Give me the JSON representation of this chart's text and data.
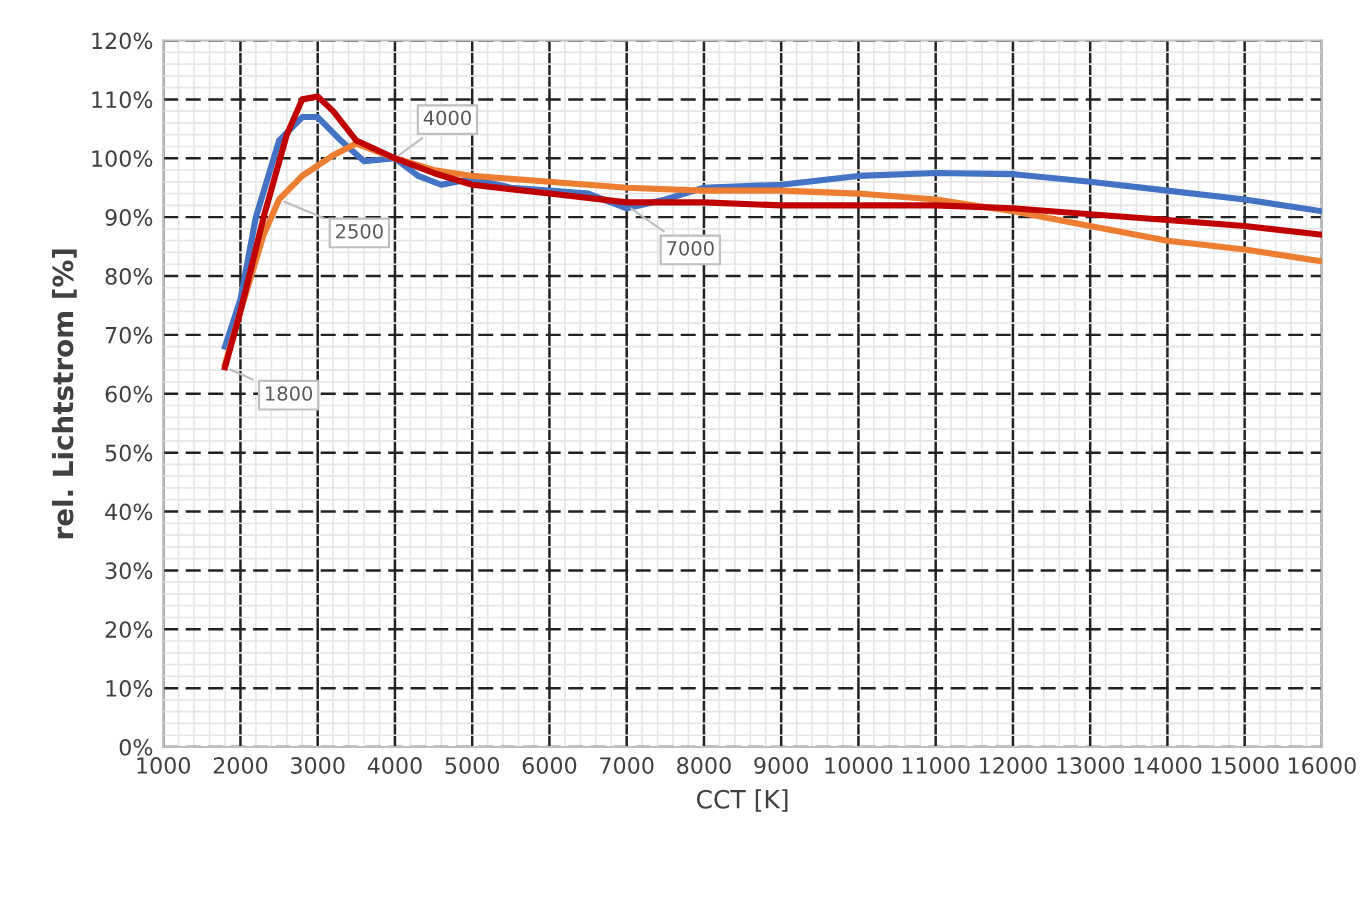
{
  "chart_data": {
    "type": "line",
    "xlabel": "CCT [K]",
    "ylabel": "rel. Lichtstrom [%]",
    "xlim": [
      1000,
      16000
    ],
    "ylim": [
      0,
      120
    ],
    "xticks": [
      1000,
      2000,
      3000,
      4000,
      5000,
      6000,
      7000,
      8000,
      9000,
      10000,
      11000,
      12000,
      13000,
      14000,
      15000,
      16000
    ],
    "yticks": [
      {
        "value": 0,
        "label": "0%"
      },
      {
        "value": 10,
        "label": "10%"
      },
      {
        "value": 20,
        "label": "20%"
      },
      {
        "value": 30,
        "label": "30%"
      },
      {
        "value": 40,
        "label": "40%"
      },
      {
        "value": 50,
        "label": "50%"
      },
      {
        "value": 60,
        "label": "60%"
      },
      {
        "value": 70,
        "label": "70%"
      },
      {
        "value": 80,
        "label": "80%"
      },
      {
        "value": 90,
        "label": "90%"
      },
      {
        "value": 100,
        "label": "100%"
      },
      {
        "value": 110,
        "label": "110%"
      },
      {
        "value": 120,
        "label": "120%"
      }
    ],
    "grid": true,
    "marker": "none",
    "line_style": "solid",
    "annotations": [
      {
        "text": "1800",
        "x": 1800,
        "y": 64.5
      },
      {
        "text": "2500",
        "x": 2500,
        "y": 93
      },
      {
        "text": "4000",
        "x": 4000,
        "y": 100
      },
      {
        "text": "7000",
        "x": 7000,
        "y": 92
      }
    ],
    "series": [
      {
        "color": "#4472c4",
        "x": [
          1800,
          2000,
          2200,
          2500,
          2800,
          3000,
          3300,
          3600,
          4000,
          4300,
          4600,
          5000,
          5500,
          6000,
          6500,
          7000,
          7500,
          8000,
          9000,
          10000,
          11000,
          12000,
          13000,
          14000,
          15000,
          16000
        ],
        "values": [
          68,
          76,
          90,
          103,
          107,
          107,
          103,
          99.5,
          100,
          97,
          95.5,
          96.5,
          95,
          94.5,
          94,
          91.5,
          93,
          95,
          95.5,
          97,
          97.5,
          97.3,
          96,
          94.5,
          93,
          91
        ]
      },
      {
        "color": "#ed7d31",
        "x": [
          1800,
          2000,
          2300,
          2500,
          2800,
          3200,
          3500,
          4000,
          4500,
          5000,
          6000,
          7000,
          8000,
          9000,
          10000,
          11000,
          12000,
          13000,
          14000,
          15000,
          16000
        ],
        "values": [
          65,
          74,
          87,
          93,
          97,
          100.5,
          102.5,
          100,
          98,
          97,
          96,
          95,
          94.5,
          94.5,
          94,
          93,
          91,
          88.5,
          86,
          84.5,
          82.5
        ]
      },
      {
        "color": "#c00000",
        "x": [
          1800,
          2000,
          2300,
          2600,
          2800,
          3000,
          3200,
          3500,
          4000,
          4500,
          5000,
          6000,
          7000,
          8000,
          9000,
          10000,
          11000,
          12000,
          13000,
          14000,
          15000,
          16000
        ],
        "values": [
          64.5,
          74,
          90,
          104,
          110,
          110.5,
          108,
          103,
          100,
          97.5,
          95.5,
          94,
          92.5,
          92.5,
          92,
          92,
          92,
          91.5,
          90.5,
          89.5,
          88.5,
          87
        ]
      }
    ]
  }
}
